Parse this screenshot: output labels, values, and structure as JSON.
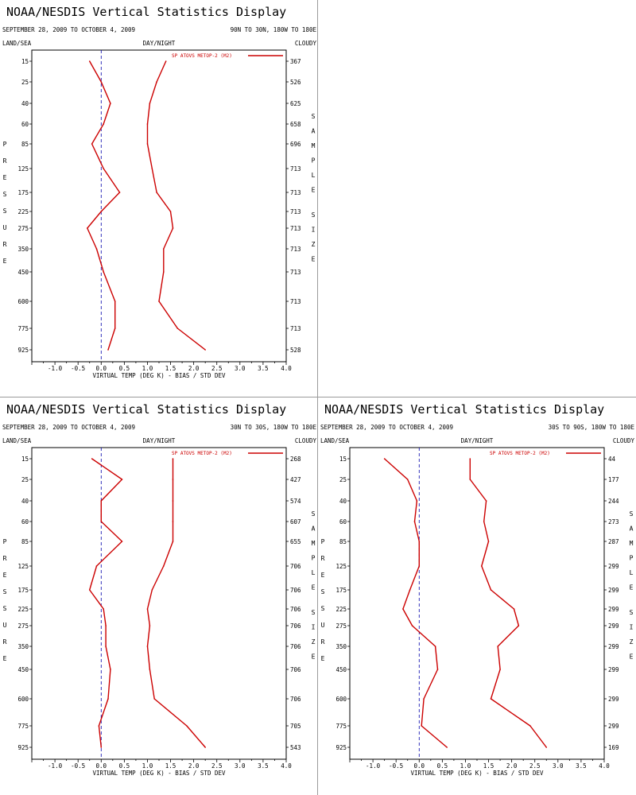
{
  "panel_title": "NOAA/NESDIS Vertical Statistics Display",
  "corner_labels": {
    "left": "LAND/SEA",
    "center": "DAY/NIGHT",
    "right": "CLOUDY"
  },
  "left_axis_letters": [
    "P",
    "R",
    "E",
    "S",
    "S",
    "U",
    "R",
    "E"
  ],
  "right_axis_letters_top": [
    "S",
    "A",
    "M",
    "P",
    "L",
    "E"
  ],
  "right_axis_letters_bottom": [
    "S",
    "I",
    "Z",
    "E"
  ],
  "colors": {
    "line": "#cc0000",
    "text": "#000000",
    "zero_line": "#0000aa"
  },
  "chart_data": [
    {
      "type": "line",
      "date_range": "SEPTEMBER 28, 2009 TO OCTOBER 4, 2009",
      "region": "90N TO 30N, 180W TO 180E",
      "xlabel": "VIRTUAL TEMP (DEG K) - BIAS / STD DEV",
      "xlim": [
        -1.5,
        4.0
      ],
      "xticks": [
        "-1.0",
        "-0.5",
        "0.0",
        "0.5",
        "1.0",
        "1.5",
        "2.0",
        "2.5",
        "3.0",
        "3.5",
        "4.0"
      ],
      "pressure_levels": [
        "15",
        "25",
        "40",
        "60",
        "85",
        "125",
        "175",
        "225",
        "275",
        "350",
        "450",
        "600",
        "775",
        "925"
      ],
      "sample_size": [
        "367",
        "526",
        "625",
        "658",
        "696",
        "713",
        "713",
        "713",
        "713",
        "713",
        "713",
        "713",
        "713",
        "528"
      ],
      "legend": "SP ATOVS METOP-2 (M2)",
      "series": [
        {
          "values": [
            -0.25,
            0.0,
            0.2,
            0.05,
            -0.2,
            0.05,
            0.4,
            0.0,
            -0.3,
            -0.1,
            0.05,
            0.3,
            0.3,
            0.15
          ]
        },
        {
          "values": [
            1.4,
            1.2,
            1.05,
            1.0,
            1.0,
            1.1,
            1.2,
            1.5,
            1.55,
            1.35,
            1.35,
            1.25,
            1.65,
            2.25
          ]
        }
      ]
    },
    {
      "type": "line",
      "date_range": "SEPTEMBER 28, 2009 TO OCTOBER 4, 2009",
      "region": "30N TO 30S, 180W TO 180E",
      "xlabel": "VIRTUAL TEMP (DEG K) - BIAS / STD DEV",
      "xlim": [
        -1.5,
        4.0
      ],
      "xticks": [
        "-1.0",
        "-0.5",
        "0.0",
        "0.5",
        "1.0",
        "1.5",
        "2.0",
        "2.5",
        "3.0",
        "3.5",
        "4.0"
      ],
      "pressure_levels": [
        "15",
        "25",
        "40",
        "60",
        "85",
        "125",
        "175",
        "225",
        "275",
        "350",
        "450",
        "600",
        "775",
        "925"
      ],
      "sample_size": [
        "268",
        "427",
        "574",
        "607",
        "655",
        "706",
        "706",
        "706",
        "706",
        "706",
        "706",
        "706",
        "705",
        "543"
      ],
      "legend": "SP ATOVS METOP-2 (M2)",
      "series": [
        {
          "values": [
            -0.2,
            0.45,
            0.0,
            0.0,
            0.45,
            -0.1,
            -0.25,
            0.05,
            0.1,
            0.1,
            0.2,
            0.15,
            -0.05,
            0.0
          ]
        },
        {
          "values": [
            1.55,
            1.55,
            1.55,
            1.55,
            1.55,
            1.35,
            1.1,
            1.0,
            1.05,
            1.0,
            1.05,
            1.15,
            1.85,
            2.25
          ]
        }
      ]
    },
    {
      "type": "line",
      "date_range": "SEPTEMBER 28, 2009 TO OCTOBER 4, 2009",
      "region": "30S TO 90S, 180W TO 180E",
      "xlabel": "VIRTUAL TEMP (DEG K) - BIAS / STD DEV",
      "xlim": [
        -1.5,
        4.0
      ],
      "xticks": [
        "-1.0",
        "-0.5",
        "0.0",
        "0.5",
        "1.0",
        "1.5",
        "2.0",
        "2.5",
        "3.0",
        "3.5",
        "4.0"
      ],
      "pressure_levels": [
        "15",
        "25",
        "40",
        "60",
        "85",
        "125",
        "175",
        "225",
        "275",
        "350",
        "450",
        "600",
        "775",
        "925"
      ],
      "sample_size": [
        "44",
        "177",
        "244",
        "273",
        "287",
        "299",
        "299",
        "299",
        "299",
        "299",
        "299",
        "299",
        "299",
        "169"
      ],
      "legend": "SP ATOVS METOP-2 (M2)",
      "series": [
        {
          "values": [
            -0.75,
            -0.25,
            -0.05,
            -0.1,
            0.0,
            0.0,
            -0.2,
            -0.35,
            -0.15,
            0.35,
            0.4,
            0.1,
            0.05,
            0.6
          ]
        },
        {
          "values": [
            1.1,
            1.1,
            1.45,
            1.4,
            1.5,
            1.35,
            1.55,
            2.05,
            2.15,
            1.7,
            1.75,
            1.55,
            2.4,
            2.75
          ]
        }
      ]
    }
  ]
}
